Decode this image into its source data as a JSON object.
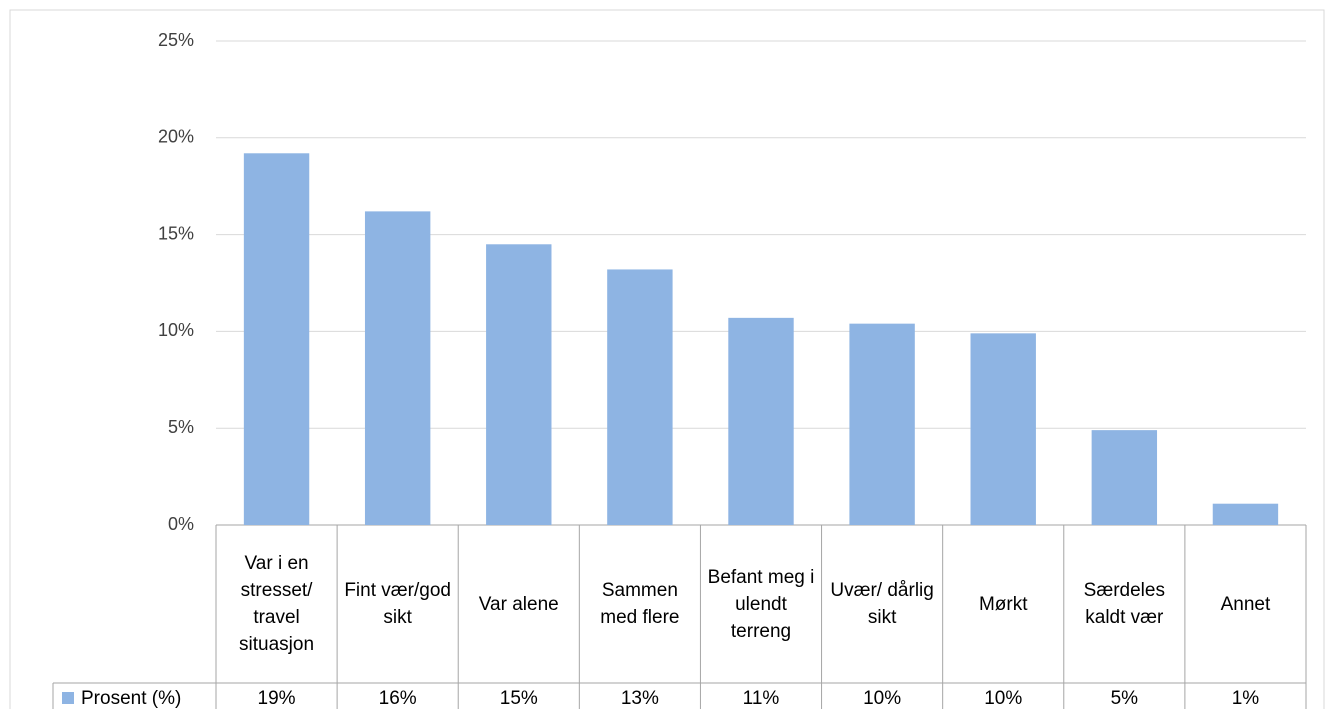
{
  "chart_data": {
    "type": "bar",
    "categories": [
      "Var i en stresset/ travel situasjon",
      "Fint vær/god sikt",
      "Var alene",
      "Sammen med flere",
      "Befant meg i ulendt terreng",
      "Uvær/ dårlig sikt",
      "Mørkt",
      "Særdeles kaldt vær",
      "Annet"
    ],
    "series": [
      {
        "name": "Prosent (%)",
        "color": "#8eb4e3",
        "values": [
          19.2,
          16.2,
          14.5,
          13.2,
          10.7,
          10.4,
          9.9,
          4.9,
          1.1
        ],
        "value_labels": [
          "19%",
          "16%",
          "15%",
          "13%",
          "11%",
          "10%",
          "10%",
          "5%",
          "1%"
        ]
      }
    ],
    "ylim": [
      0,
      25
    ],
    "yticks": [
      {
        "value": 0,
        "label": "0%"
      },
      {
        "value": 5,
        "label": "5%"
      },
      {
        "value": 10,
        "label": "10%"
      },
      {
        "value": 15,
        "label": "15%"
      },
      {
        "value": 20,
        "label": "20%"
      },
      {
        "value": 25,
        "label": "25%"
      }
    ],
    "grid": true
  }
}
